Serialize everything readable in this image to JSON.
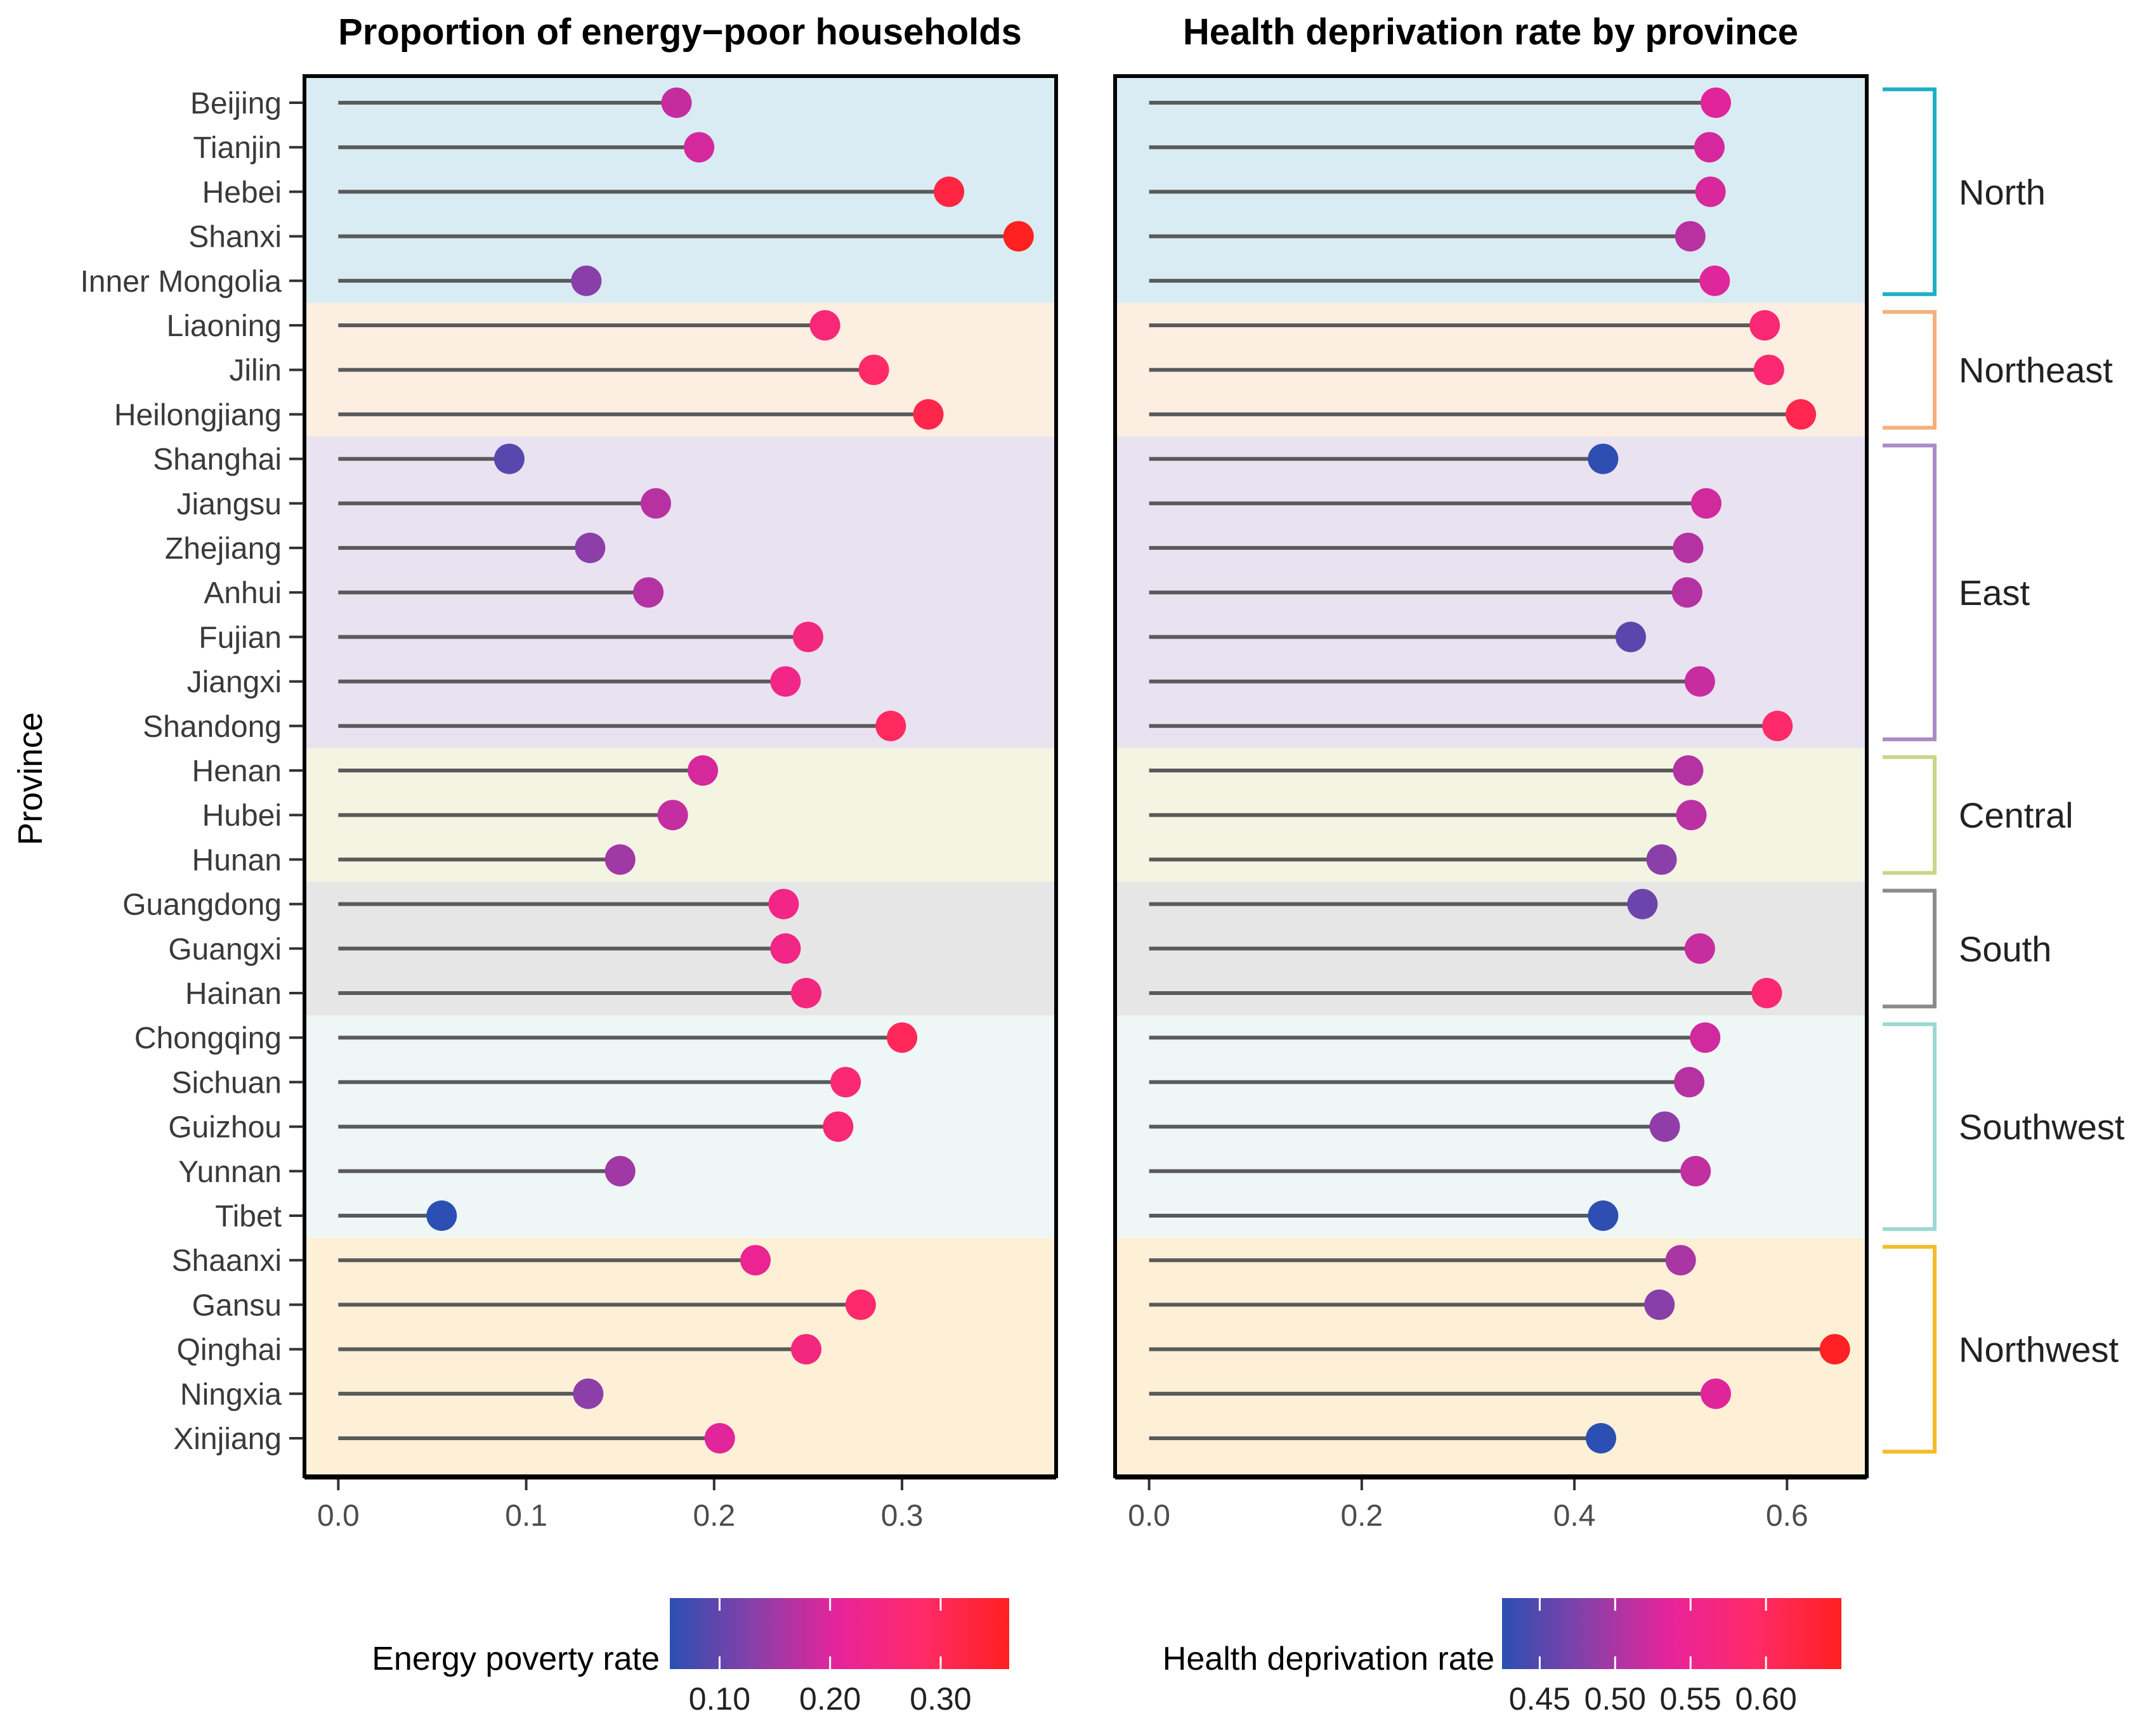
{
  "chart_data": [
    {
      "type": "lollipop",
      "title": "Proportion of energy−poor households",
      "xlabel": "",
      "ylabel": "Province",
      "xlim": [
        -0.018,
        0.382
      ],
      "x_ticks": [
        "0.0",
        "0.1",
        "0.2",
        "0.3"
      ],
      "x_tick_values": [
        0.0,
        0.1,
        0.2,
        0.3
      ],
      "legend": {
        "title": "Energy poverty rate",
        "position": "bottom",
        "range": [
          0.055,
          0.362
        ],
        "ticks": [
          "0.10",
          "0.20",
          "0.30"
        ],
        "tick_values": [
          0.1,
          0.2,
          0.3
        ]
      },
      "values": [
        0.18,
        0.192,
        0.325,
        0.362,
        0.132,
        0.259,
        0.285,
        0.314,
        0.091,
        0.169,
        0.134,
        0.165,
        0.25,
        0.238,
        0.294,
        0.194,
        0.178,
        0.15,
        0.237,
        0.238,
        0.249,
        0.3,
        0.27,
        0.266,
        0.15,
        0.055,
        0.222,
        0.278,
        0.249,
        0.133,
        0.203
      ]
    },
    {
      "type": "lollipop",
      "title": "Health deprivation rate by province",
      "xlabel": "",
      "ylabel": "",
      "xlim": [
        -0.032,
        0.675
      ],
      "x_ticks": [
        "0.0",
        "0.2",
        "0.4",
        "0.6"
      ],
      "x_tick_values": [
        0.0,
        0.2,
        0.4,
        0.6
      ],
      "legend": {
        "title": "Health deprivation rate",
        "position": "bottom",
        "range": [
          0.425,
          0.65
        ],
        "ticks": [
          "0.45",
          "0.50",
          "0.55",
          "0.60"
        ],
        "tick_values": [
          0.45,
          0.5,
          0.55,
          0.6
        ]
      },
      "values": [
        0.533,
        0.527,
        0.528,
        0.509,
        0.532,
        0.579,
        0.583,
        0.613,
        0.427,
        0.524,
        0.507,
        0.506,
        0.453,
        0.518,
        0.591,
        0.507,
        0.51,
        0.482,
        0.464,
        0.518,
        0.581,
        0.523,
        0.508,
        0.485,
        0.514,
        0.427,
        0.5,
        0.48,
        0.645,
        0.533,
        0.425
      ]
    }
  ],
  "provinces": [
    "Beijing",
    "Tianjin",
    "Hebei",
    "Shanxi",
    "Inner Mongolia",
    "Liaoning",
    "Jilin",
    "Heilongjiang",
    "Shanghai",
    "Jiangsu",
    "Zhejiang",
    "Anhui",
    "Fujian",
    "Jiangxi",
    "Shandong",
    "Henan",
    "Hubei",
    "Hunan",
    "Guangdong",
    "Guangxi",
    "Hainan",
    "Chongqing",
    "Sichuan",
    "Guizhou",
    "Yunnan",
    "Tibet",
    "Shaanxi",
    "Gansu",
    "Qinghai",
    "Ningxia",
    "Xinjiang"
  ],
  "regions": [
    {
      "name": "North",
      "start": 0,
      "end": 4,
      "bg": "#d9ecf3",
      "bracket": "#1fb0c4"
    },
    {
      "name": "Northeast",
      "start": 5,
      "end": 7,
      "bg": "#fdeee2",
      "bracket": "#f4b07d"
    },
    {
      "name": "East",
      "start": 8,
      "end": 14,
      "bg": "#e9e2f0",
      "bracket": "#a98cc8"
    },
    {
      "name": "Central",
      "start": 15,
      "end": 17,
      "bg": "#f3f4e2",
      "bracket": "#c9d68b"
    },
    {
      "name": "South",
      "start": 18,
      "end": 20,
      "bg": "#e6e6e6",
      "bracket": "#8c8c8c"
    },
    {
      "name": "Southwest",
      "start": 21,
      "end": 25,
      "bg": "#eef6f6",
      "bracket": "#9ed8d2"
    },
    {
      "name": "Northwest",
      "start": 26,
      "end": 30,
      "bg": "#fdf0d7",
      "bracket": "#f2bd2b"
    }
  ],
  "colors": {
    "scale_low": "#2b4fb2",
    "scale_mid1": "#8a3fa8",
    "scale_mid2": "#e8239a",
    "scale_mid3": "#ff2a67",
    "scale_high": "#ff2020",
    "stem": "#5a5a5a",
    "panel_border": "#000000"
  }
}
